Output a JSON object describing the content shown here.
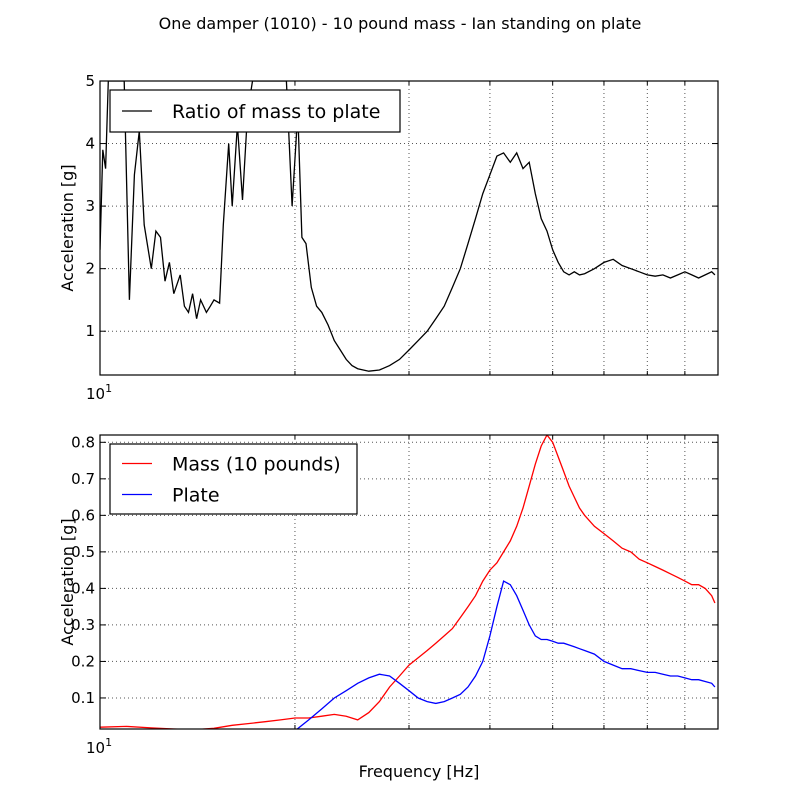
{
  "title": "One damper (1010) - 10 pound mass - Ian standing on plate",
  "chart_data": [
    {
      "type": "line",
      "xscale": "log",
      "xlim": [
        10,
        90
      ],
      "ylim": [
        0.3,
        5
      ],
      "xlabel": "",
      "ylabel": "Acceleration [g]",
      "yticks": [
        1,
        2,
        3,
        4,
        5
      ],
      "xtick_label_base": "10",
      "xtick_label_exp": "1",
      "grid": true,
      "legend_position": "upper-left",
      "series": [
        {
          "name": "Ratio of mass to plate",
          "color": "#000000",
          "x": [
            10,
            10.1,
            10.2,
            10.3,
            10.5,
            10.7,
            10.9,
            11.1,
            11.3,
            11.5,
            11.7,
            12.0,
            12.2,
            12.4,
            12.6,
            12.8,
            13.0,
            13.3,
            13.5,
            13.7,
            13.9,
            14.1,
            14.3,
            14.6,
            14.8,
            15.0,
            15.3,
            15.5,
            15.8,
            16.0,
            16.3,
            16.6,
            16.9,
            17.2,
            17.5,
            17.8,
            18.1,
            18.4,
            18.7,
            19.0,
            19.4,
            19.8,
            20.2,
            20.5,
            20.8,
            21.2,
            21.6,
            22.0,
            22.5,
            23,
            23.5,
            24,
            24.5,
            25,
            26,
            27,
            28,
            29,
            30,
            31,
            32,
            33,
            34,
            35,
            36,
            37,
            38,
            39,
            40,
            41,
            42,
            43,
            44,
            45,
            46,
            47,
            48,
            49,
            50,
            51,
            52,
            53,
            54,
            55,
            56,
            58,
            60,
            62,
            64,
            66,
            68,
            70,
            72,
            74,
            76,
            78,
            80,
            82,
            84,
            86,
            88,
            89
          ],
          "y": [
            2.3,
            3.9,
            3.6,
            5.0,
            5.0,
            5.0,
            5.0,
            1.5,
            3.5,
            4.2,
            2.7,
            2.0,
            2.6,
            2.5,
            1.8,
            2.1,
            1.6,
            1.9,
            1.4,
            1.3,
            1.6,
            1.2,
            1.5,
            1.3,
            1.4,
            1.5,
            1.45,
            2.7,
            4.0,
            3.0,
            4.3,
            3.1,
            4.5,
            5.0,
            5.0,
            5.0,
            5.0,
            5.0,
            5.0,
            5.0,
            5.0,
            3.0,
            4.5,
            2.5,
            2.4,
            1.7,
            1.4,
            1.3,
            1.1,
            0.85,
            0.7,
            0.55,
            0.45,
            0.4,
            0.36,
            0.38,
            0.45,
            0.55,
            0.7,
            0.85,
            1.0,
            1.2,
            1.4,
            1.7,
            2.0,
            2.4,
            2.8,
            3.2,
            3.5,
            3.8,
            3.85,
            3.7,
            3.85,
            3.6,
            3.7,
            3.2,
            2.8,
            2.6,
            2.3,
            2.1,
            1.95,
            1.9,
            1.95,
            1.9,
            1.92,
            2.0,
            2.1,
            2.15,
            2.05,
            2.0,
            1.95,
            1.9,
            1.88,
            1.9,
            1.85,
            1.9,
            1.95,
            1.9,
            1.85,
            1.9,
            1.95,
            1.9
          ]
        }
      ]
    },
    {
      "type": "line",
      "xscale": "log",
      "xlim": [
        10,
        90
      ],
      "ylim": [
        0.015,
        0.82
      ],
      "xlabel": "Frequency [Hz]",
      "ylabel": "Acceleration [g]",
      "yticks": [
        0.1,
        0.2,
        0.3,
        0.4,
        0.5,
        0.6,
        0.7,
        0.8
      ],
      "xtick_label_base": "10",
      "xtick_label_exp": "1",
      "grid": true,
      "legend_position": "upper-left",
      "series": [
        {
          "name": "Mass (10 pounds)",
          "color": "#ff0000",
          "x": [
            10,
            11,
            12,
            13,
            14,
            15,
            16,
            17,
            18,
            19,
            20,
            21,
            22,
            23,
            24,
            25,
            26,
            27,
            28,
            29,
            30,
            31,
            32,
            33,
            34,
            35,
            36,
            37,
            38,
            39,
            40,
            41,
            42,
            43,
            44,
            45,
            46,
            47,
            48,
            49,
            50,
            51,
            52,
            53,
            54,
            55,
            56,
            58,
            60,
            62,
            64,
            66,
            68,
            70,
            72,
            74,
            76,
            78,
            80,
            82,
            84,
            86,
            88,
            89
          ],
          "y": [
            0.02,
            0.022,
            0.018,
            0.015,
            0.013,
            0.017,
            0.025,
            0.03,
            0.035,
            0.04,
            0.045,
            0.045,
            0.05,
            0.055,
            0.05,
            0.04,
            0.06,
            0.09,
            0.13,
            0.16,
            0.19,
            0.21,
            0.23,
            0.25,
            0.27,
            0.29,
            0.32,
            0.35,
            0.38,
            0.42,
            0.45,
            0.47,
            0.5,
            0.53,
            0.57,
            0.62,
            0.68,
            0.74,
            0.79,
            0.82,
            0.8,
            0.76,
            0.72,
            0.68,
            0.65,
            0.62,
            0.6,
            0.57,
            0.55,
            0.53,
            0.51,
            0.5,
            0.48,
            0.47,
            0.46,
            0.45,
            0.44,
            0.43,
            0.42,
            0.41,
            0.41,
            0.4,
            0.38,
            0.36
          ]
        },
        {
          "name": "Plate",
          "color": "#0000ff",
          "x": [
            20,
            21,
            22,
            23,
            24,
            25,
            26,
            27,
            28,
            29,
            30,
            31,
            32,
            33,
            34,
            35,
            36,
            37,
            38,
            39,
            40,
            41,
            42,
            43,
            44,
            45,
            46,
            47,
            48,
            49,
            50,
            51,
            52,
            53,
            54,
            55,
            56,
            58,
            60,
            62,
            64,
            66,
            68,
            70,
            72,
            74,
            76,
            78,
            80,
            82,
            84,
            86,
            88,
            89
          ],
          "y": [
            0.01,
            0.04,
            0.07,
            0.1,
            0.12,
            0.14,
            0.155,
            0.165,
            0.16,
            0.14,
            0.12,
            0.1,
            0.09,
            0.085,
            0.09,
            0.1,
            0.11,
            0.13,
            0.16,
            0.2,
            0.27,
            0.35,
            0.42,
            0.41,
            0.38,
            0.34,
            0.3,
            0.27,
            0.26,
            0.26,
            0.255,
            0.25,
            0.25,
            0.245,
            0.24,
            0.235,
            0.23,
            0.22,
            0.2,
            0.19,
            0.18,
            0.18,
            0.175,
            0.17,
            0.17,
            0.165,
            0.16,
            0.16,
            0.155,
            0.15,
            0.15,
            0.145,
            0.14,
            0.13
          ]
        }
      ]
    }
  ]
}
